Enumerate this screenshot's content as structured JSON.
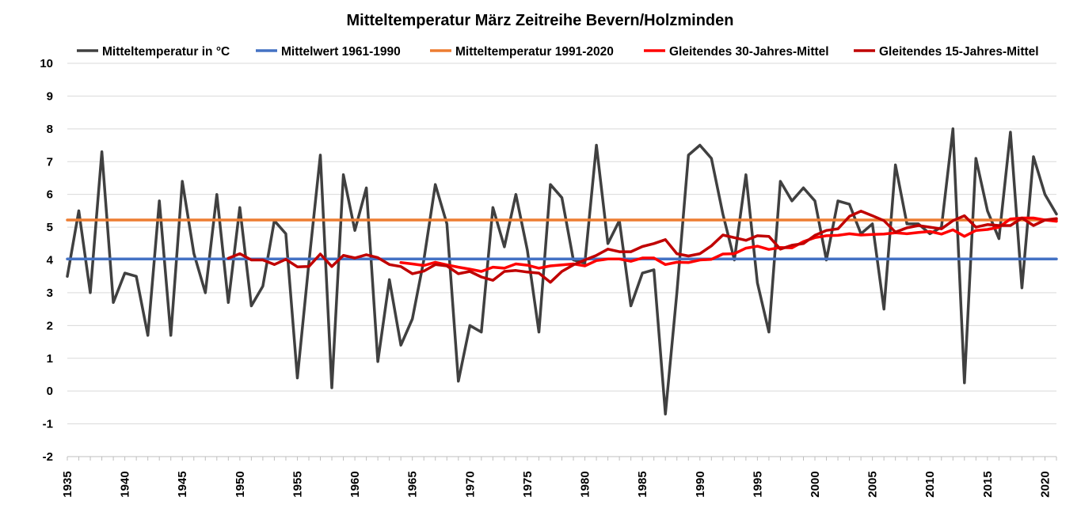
{
  "chart_data": {
    "type": "line",
    "title": "Mitteltemperatur März Zeitreihe Bevern/Holzminden",
    "xlabel": "",
    "ylabel": "",
    "ylim": [
      -2,
      10
    ],
    "xlim": [
      1935,
      2021
    ],
    "y_ticks": [
      "-2",
      "-1",
      "0",
      "1",
      "2",
      "3",
      "4",
      "5",
      "6",
      "7",
      "8",
      "9",
      "10"
    ],
    "x_ticks": [
      "1935",
      "1940",
      "1945",
      "1950",
      "1955",
      "1960",
      "1965",
      "1970",
      "1975",
      "1980",
      "1985",
      "1990",
      "1995",
      "2000",
      "2005",
      "2010",
      "2015",
      "2020"
    ],
    "grid": true,
    "legend_position": "top",
    "series": [
      {
        "name": "Mitteltemperatur in °C",
        "color": "#404040",
        "x": [
          1935,
          1936,
          1937,
          1938,
          1939,
          1940,
          1941,
          1942,
          1943,
          1944,
          1945,
          1946,
          1947,
          1948,
          1949,
          1950,
          1951,
          1952,
          1953,
          1954,
          1955,
          1956,
          1957,
          1958,
          1959,
          1960,
          1961,
          1962,
          1963,
          1964,
          1965,
          1966,
          1967,
          1968,
          1969,
          1970,
          1971,
          1972,
          1973,
          1974,
          1975,
          1976,
          1977,
          1978,
          1979,
          1980,
          1981,
          1982,
          1983,
          1984,
          1985,
          1986,
          1987,
          1988,
          1989,
          1990,
          1991,
          1992,
          1993,
          1994,
          1995,
          1996,
          1997,
          1998,
          1999,
          2000,
          2001,
          2002,
          2003,
          2004,
          2005,
          2006,
          2007,
          2008,
          2009,
          2010,
          2011,
          2012,
          2013,
          2014,
          2015,
          2016,
          2017,
          2018,
          2019,
          2020,
          2021
        ],
        "values": [
          3.5,
          5.5,
          3.0,
          7.3,
          2.7,
          3.6,
          3.5,
          1.7,
          5.8,
          1.7,
          6.4,
          4.2,
          3.0,
          6.0,
          2.7,
          5.6,
          2.6,
          3.2,
          5.2,
          4.8,
          0.4,
          3.9,
          7.2,
          0.1,
          6.6,
          4.9,
          6.2,
          0.9,
          3.4,
          1.4,
          2.2,
          4.0,
          6.3,
          5.1,
          0.3,
          2.0,
          1.8,
          5.6,
          4.4,
          6.0,
          4.3,
          1.8,
          6.3,
          5.9,
          4.0,
          3.9,
          7.5,
          4.5,
          5.2,
          2.6,
          3.6,
          3.7,
          -0.7,
          3.0,
          7.2,
          7.5,
          7.1,
          5.4,
          4.0,
          6.6,
          3.3,
          1.8,
          6.4,
          5.8,
          6.2,
          5.8,
          4.0,
          5.8,
          5.7,
          4.8,
          5.1,
          2.5,
          6.9,
          5.1,
          5.1,
          4.8,
          5.0,
          8.0,
          0.25,
          7.1,
          5.5,
          4.65,
          7.9,
          3.15,
          7.15,
          6.0,
          5.4
        ]
      },
      {
        "name": "Mittelwert 1961-1990",
        "color": "#4472c4",
        "x": [
          1935,
          2021
        ],
        "values": [
          4.03,
          4.03
        ]
      },
      {
        "name": "Mitteltemperatur 1991-2020",
        "color": "#ed7d31",
        "x": [
          1935,
          2021
        ],
        "values": [
          5.22,
          5.22
        ]
      },
      {
        "name": "Gleitendes 30-Jahres-Mittel",
        "color": "#ff0000",
        "x": [
          1964,
          1965,
          1966,
          1967,
          1968,
          1969,
          1970,
          1971,
          1972,
          1973,
          1974,
          1975,
          1976,
          1977,
          1978,
          1979,
          1980,
          1981,
          1982,
          1983,
          1984,
          1985,
          1986,
          1987,
          1988,
          1989,
          1990,
          1991,
          1992,
          1993,
          1994,
          1995,
          1996,
          1997,
          1998,
          1999,
          2000,
          2001,
          2002,
          2003,
          2004,
          2005,
          2006,
          2007,
          2008,
          2009,
          2010,
          2011,
          2012,
          2013,
          2014,
          2015,
          2016,
          2017,
          2018,
          2019,
          2020,
          2021
        ],
        "values": [
          3.92,
          3.88,
          3.83,
          3.93,
          3.85,
          3.78,
          3.72,
          3.65,
          3.78,
          3.75,
          3.88,
          3.84,
          3.75,
          3.82,
          3.85,
          3.88,
          3.82,
          3.98,
          4.03,
          4.03,
          3.96,
          4.06,
          4.06,
          3.86,
          3.93,
          3.92,
          4.0,
          4.02,
          4.18,
          4.19,
          4.36,
          4.42,
          4.32,
          4.38,
          4.37,
          4.56,
          4.68,
          4.74,
          4.75,
          4.8,
          4.76,
          4.78,
          4.79,
          4.83,
          4.8,
          4.84,
          4.87,
          4.79,
          4.92,
          4.72,
          4.9,
          4.93,
          5.0,
          5.25,
          5.28,
          5.28,
          5.22,
          5.18
        ]
      },
      {
        "name": "Gleitendes 15-Jahres-Mittel",
        "color": "#c00000",
        "x": [
          1949,
          1950,
          1951,
          1952,
          1953,
          1954,
          1955,
          1956,
          1957,
          1958,
          1959,
          1960,
          1961,
          1962,
          1963,
          1964,
          1965,
          1966,
          1967,
          1968,
          1969,
          1970,
          1971,
          1972,
          1973,
          1974,
          1975,
          1976,
          1977,
          1978,
          1979,
          1980,
          1981,
          1982,
          1983,
          1984,
          1985,
          1986,
          1987,
          1988,
          1989,
          1990,
          1991,
          1992,
          1993,
          1994,
          1995,
          1996,
          1997,
          1998,
          1999,
          2000,
          2001,
          2002,
          2003,
          2004,
          2005,
          2006,
          2007,
          2008,
          2009,
          2010,
          2011,
          2012,
          2013,
          2014,
          2015,
          2016,
          2017,
          2018,
          2019,
          2020,
          2021
        ],
        "values": [
          4.05,
          4.19,
          4.0,
          4.0,
          3.86,
          4.02,
          3.79,
          3.8,
          4.18,
          3.8,
          4.14,
          4.06,
          4.16,
          4.07,
          3.86,
          3.8,
          3.58,
          3.66,
          3.86,
          3.82,
          3.58,
          3.65,
          3.48,
          3.38,
          3.65,
          3.68,
          3.63,
          3.6,
          3.32,
          3.65,
          3.85,
          4.0,
          4.14,
          4.33,
          4.25,
          4.25,
          4.41,
          4.5,
          4.62,
          4.19,
          4.12,
          4.19,
          4.43,
          4.76,
          4.68,
          4.6,
          4.74,
          4.72,
          4.33,
          4.45,
          4.5,
          4.75,
          4.9,
          4.95,
          5.33,
          5.49,
          5.35,
          5.2,
          4.85,
          4.98,
          5.05,
          5.0,
          4.95,
          5.2,
          5.35,
          5.0,
          5.08,
          5.05,
          5.05,
          5.28,
          5.05,
          5.22,
          5.26
        ]
      }
    ]
  }
}
